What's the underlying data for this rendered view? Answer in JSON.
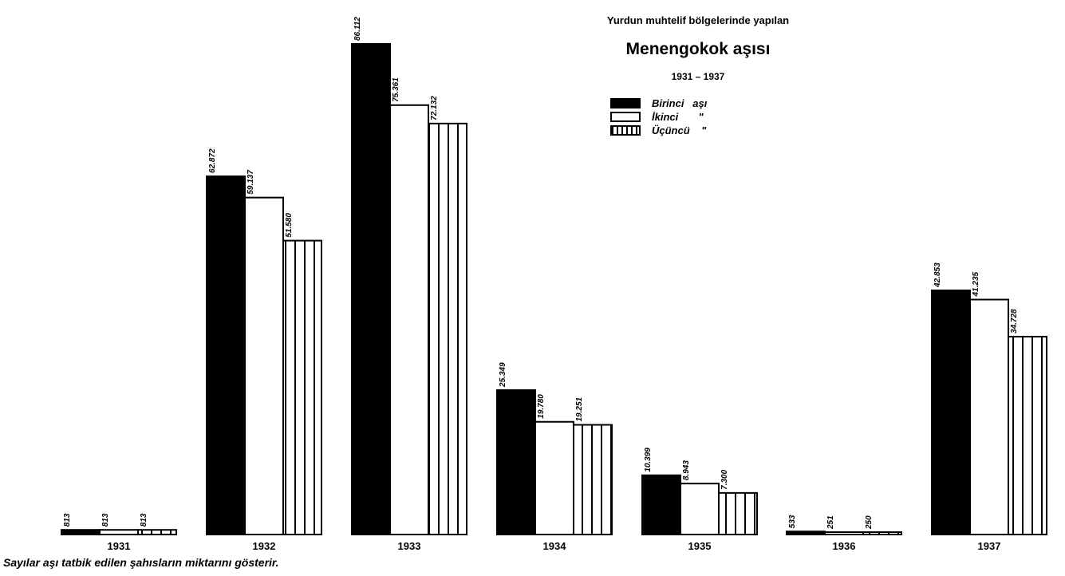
{
  "chart_data": {
    "type": "bar",
    "supertitle": "Yurdun muhtelif bölgelerinde yapılan",
    "title": "Menengokok aşısı",
    "subtitle": "1931 – 1937",
    "categories": [
      "1931",
      "1932",
      "1933",
      "1934",
      "1935",
      "1936",
      "1937"
    ],
    "series": [
      {
        "name": "Birinci aşı",
        "legend_label": "Birinci   aşı",
        "pattern": "solid",
        "values": [
          813,
          62872,
          86112,
          25349,
          10399,
          533,
          42853
        ],
        "labels": [
          "813",
          "62.872",
          "86.112",
          "25.349",
          "10.399",
          "533",
          "42.853"
        ]
      },
      {
        "name": "İkinci",
        "legend_label": "İkinci       \"",
        "pattern": "white",
        "values": [
          813,
          59137,
          75361,
          19780,
          8943,
          251,
          41235
        ],
        "labels": [
          "813",
          "59.137",
          "75.361",
          "19.780",
          "8.943",
          "251",
          "41.235"
        ]
      },
      {
        "name": "Üçüncü",
        "legend_label": "Üçüncü    \"",
        "pattern": "vertical-hatch",
        "values": [
          813,
          51580,
          72132,
          19251,
          7300,
          250,
          34728
        ],
        "labels": [
          "813",
          "51.580",
          "72.132",
          "19.251",
          "7.300",
          "250",
          "34.728"
        ]
      }
    ],
    "ylim": [
      0,
      86112
    ],
    "grid": false,
    "legend_position": "top-right",
    "note": "Sayılar aşı tatbik edilen şahısların miktarını gösterir."
  }
}
